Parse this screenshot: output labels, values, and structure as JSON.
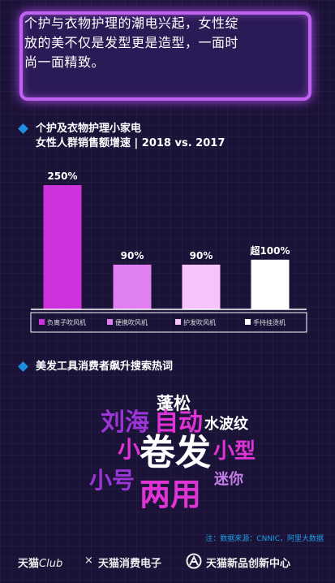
{
  "intro": {
    "line1": "个护与衣物护理的潮电兴起，女性绽",
    "line2": "放的美不仅是发型更是造型，一面时",
    "line3": "尚一面精致。"
  },
  "chart_title": {
    "line1": "个护及衣物护理小家电",
    "line2": "女性人群销售额增速 | 2018 vs. 2017"
  },
  "chart_data": {
    "type": "bar",
    "title": "个护及衣物护理小家电 女性人群销售额增速 | 2018 vs. 2017",
    "categories": [
      "负离子吹风机",
      "便携吹风机",
      "护发吹风机",
      "手持挂烫机"
    ],
    "values": [
      250,
      90,
      90,
      100
    ],
    "value_labels": [
      "250%",
      "90%",
      "90%",
      "超100%"
    ],
    "colors": [
      "#cc33dd",
      "#e07ff2",
      "#f6c3fb",
      "#ffffff"
    ],
    "ylim": [
      0,
      260
    ],
    "legend_position": "bottom",
    "grid": false
  },
  "words_section": {
    "title": "美发工具消费者飙升搜索热词",
    "words": [
      {
        "text": "蓬松",
        "color": "#ffffff"
      },
      {
        "text": "刘海",
        "color": "#9b35d6"
      },
      {
        "text": "自动",
        "color": "#e033d6"
      },
      {
        "text": "水波纹",
        "color": "#ffffff"
      },
      {
        "text": "小",
        "color": "#e033d6"
      },
      {
        "text": "卷发",
        "color": "#ffffff"
      },
      {
        "text": "小型",
        "color": "#e033d6"
      },
      {
        "text": "小号",
        "color": "#9b35d6"
      },
      {
        "text": "两用",
        "color": "#e033d6"
      },
      {
        "text": "迷你",
        "color": "#c77fec"
      }
    ]
  },
  "source_note": "注：数据来源：CNNIC，阿里大数据",
  "footer": {
    "brand1_a": "天猫",
    "brand1_b": "Club",
    "separator": "×",
    "brand2": "天猫消费电子",
    "brand3": "天猫新品创新中心"
  }
}
